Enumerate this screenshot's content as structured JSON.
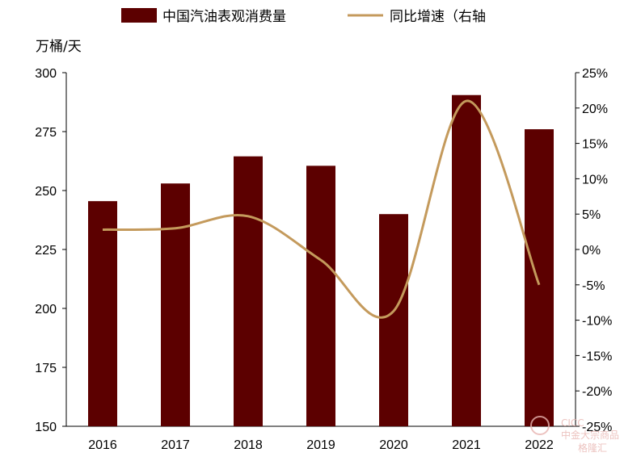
{
  "chart_data": {
    "type": "bar",
    "categories": [
      "2016",
      "2017",
      "2018",
      "2019",
      "2020",
      "2021",
      "2022"
    ],
    "series": [
      {
        "name": "中国汽油表观消费量",
        "type": "bar",
        "axis": "left",
        "values": [
          245.5,
          253,
          264.5,
          260.5,
          240,
          290.5,
          276
        ]
      },
      {
        "name": "同比增速（右轴",
        "type": "line",
        "axis": "right",
        "values": [
          2.8,
          3.0,
          4.7,
          -1.5,
          -8.7,
          21.0,
          -5.0
        ]
      }
    ],
    "ylabel": "万桶/天",
    "ylim": [
      150,
      300
    ],
    "yticks": [
      "150",
      "175",
      "200",
      "225",
      "250",
      "275",
      "300"
    ],
    "y2lim": [
      -25,
      25
    ],
    "y2ticks": [
      "-25%",
      "-20%",
      "-15%",
      "-10%",
      "-5%",
      "0%",
      "5%",
      "10%",
      "15%",
      "20%",
      "25%"
    ],
    "grid": false,
    "legend_position": "top",
    "colors": {
      "bar": "#5c0000",
      "line": "#c49a5c"
    }
  },
  "watermark": {
    "line1": "CICC",
    "line2": "中金大宗商品",
    "line3": "格隆汇"
  }
}
